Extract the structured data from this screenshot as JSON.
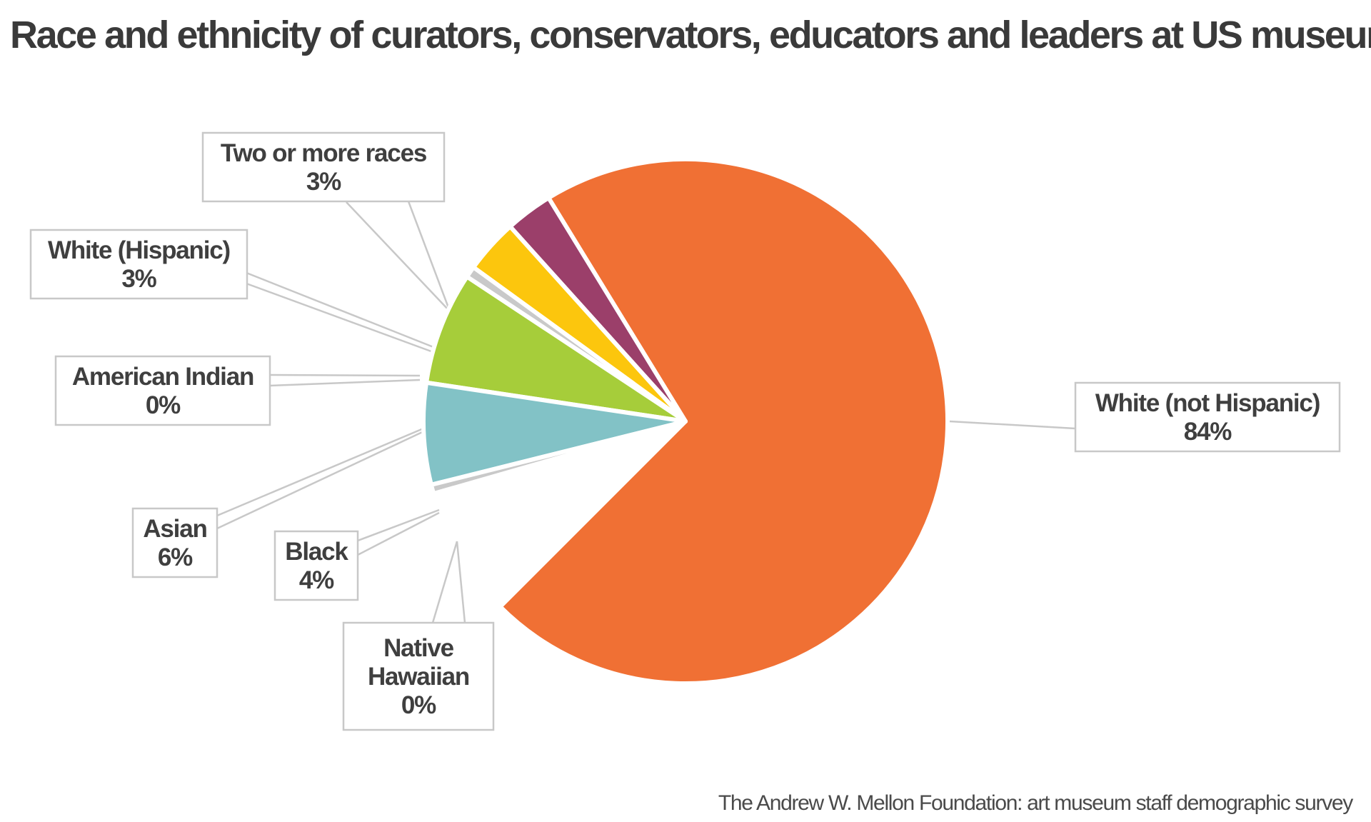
{
  "chart_data": {
    "type": "pie",
    "title": "Race and ethnicity of curators, conservators, educators and leaders at US museums",
    "source": "The Andrew W. Mellon Foundation: art museum staff demographic survey",
    "slices": [
      {
        "label": "White (not Hispanic)",
        "value": 84,
        "value_label": "84%",
        "color": "#f07034"
      },
      {
        "label": "Two or more races",
        "value": 3,
        "value_label": "3%",
        "color": "#9b3f6a"
      },
      {
        "label": "White (Hispanic)",
        "value": 3,
        "value_label": "3%",
        "color": "#fcc60d"
      },
      {
        "label": "American Indian",
        "value": 0,
        "value_label": "0%",
        "color": "#c9c9c9"
      },
      {
        "label": "Asian",
        "value": 6,
        "value_label": "6%",
        "color": "#a6cd3a"
      },
      {
        "label": "Black",
        "value": 4,
        "value_label": "4%",
        "color": "#82c2c6"
      },
      {
        "label": "Native Hawaiian",
        "value": 0,
        "value_label": "0%",
        "color": "#c9c9c9"
      }
    ]
  }
}
